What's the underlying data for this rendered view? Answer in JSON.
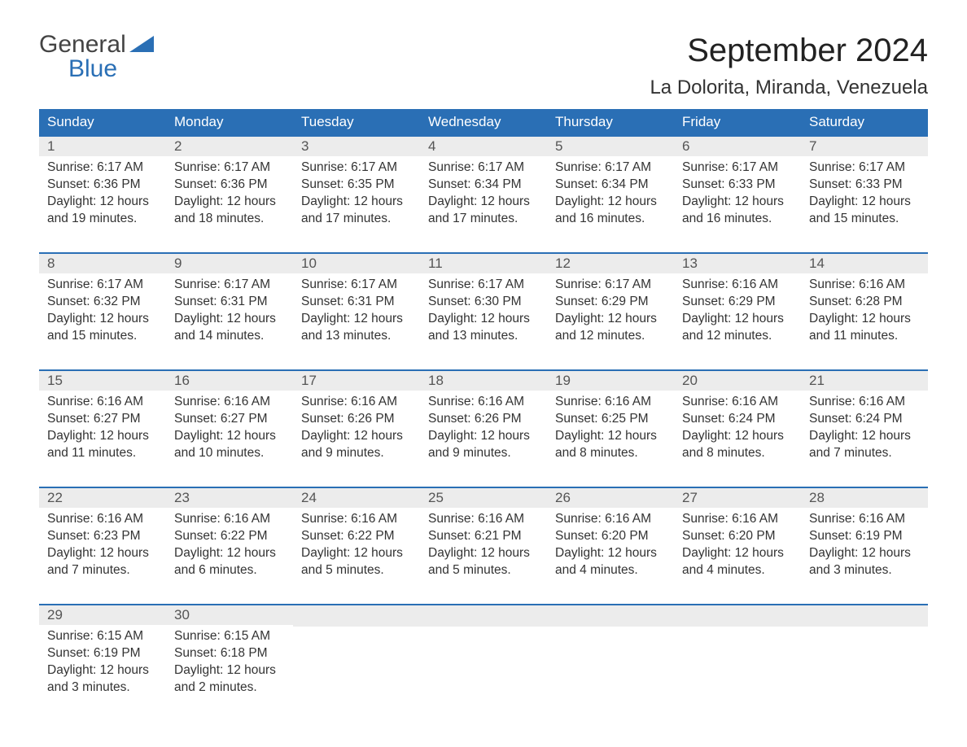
{
  "brand": {
    "word1": "General",
    "word2": "Blue",
    "accent_color": "#2a6fb5",
    "text_color": "#444444"
  },
  "title": "September 2024",
  "location": "La Dolorita, Miranda, Venezuela",
  "colors": {
    "header_bg": "#2a6fb5",
    "header_text": "#ffffff",
    "daynum_bg": "#ececec",
    "row_top_border": "#2a6fb5",
    "body_text": "#333333",
    "page_bg": "#ffffff"
  },
  "weekdays": [
    "Sunday",
    "Monday",
    "Tuesday",
    "Wednesday",
    "Thursday",
    "Friday",
    "Saturday"
  ],
  "weeks": [
    [
      {
        "day": "1",
        "sunrise": "Sunrise: 6:17 AM",
        "sunset": "Sunset: 6:36 PM",
        "dl1": "Daylight: 12 hours",
        "dl2": "and 19 minutes."
      },
      {
        "day": "2",
        "sunrise": "Sunrise: 6:17 AM",
        "sunset": "Sunset: 6:36 PM",
        "dl1": "Daylight: 12 hours",
        "dl2": "and 18 minutes."
      },
      {
        "day": "3",
        "sunrise": "Sunrise: 6:17 AM",
        "sunset": "Sunset: 6:35 PM",
        "dl1": "Daylight: 12 hours",
        "dl2": "and 17 minutes."
      },
      {
        "day": "4",
        "sunrise": "Sunrise: 6:17 AM",
        "sunset": "Sunset: 6:34 PM",
        "dl1": "Daylight: 12 hours",
        "dl2": "and 17 minutes."
      },
      {
        "day": "5",
        "sunrise": "Sunrise: 6:17 AM",
        "sunset": "Sunset: 6:34 PM",
        "dl1": "Daylight: 12 hours",
        "dl2": "and 16 minutes."
      },
      {
        "day": "6",
        "sunrise": "Sunrise: 6:17 AM",
        "sunset": "Sunset: 6:33 PM",
        "dl1": "Daylight: 12 hours",
        "dl2": "and 16 minutes."
      },
      {
        "day": "7",
        "sunrise": "Sunrise: 6:17 AM",
        "sunset": "Sunset: 6:33 PM",
        "dl1": "Daylight: 12 hours",
        "dl2": "and 15 minutes."
      }
    ],
    [
      {
        "day": "8",
        "sunrise": "Sunrise: 6:17 AM",
        "sunset": "Sunset: 6:32 PM",
        "dl1": "Daylight: 12 hours",
        "dl2": "and 15 minutes."
      },
      {
        "day": "9",
        "sunrise": "Sunrise: 6:17 AM",
        "sunset": "Sunset: 6:31 PM",
        "dl1": "Daylight: 12 hours",
        "dl2": "and 14 minutes."
      },
      {
        "day": "10",
        "sunrise": "Sunrise: 6:17 AM",
        "sunset": "Sunset: 6:31 PM",
        "dl1": "Daylight: 12 hours",
        "dl2": "and 13 minutes."
      },
      {
        "day": "11",
        "sunrise": "Sunrise: 6:17 AM",
        "sunset": "Sunset: 6:30 PM",
        "dl1": "Daylight: 12 hours",
        "dl2": "and 13 minutes."
      },
      {
        "day": "12",
        "sunrise": "Sunrise: 6:17 AM",
        "sunset": "Sunset: 6:29 PM",
        "dl1": "Daylight: 12 hours",
        "dl2": "and 12 minutes."
      },
      {
        "day": "13",
        "sunrise": "Sunrise: 6:16 AM",
        "sunset": "Sunset: 6:29 PM",
        "dl1": "Daylight: 12 hours",
        "dl2": "and 12 minutes."
      },
      {
        "day": "14",
        "sunrise": "Sunrise: 6:16 AM",
        "sunset": "Sunset: 6:28 PM",
        "dl1": "Daylight: 12 hours",
        "dl2": "and 11 minutes."
      }
    ],
    [
      {
        "day": "15",
        "sunrise": "Sunrise: 6:16 AM",
        "sunset": "Sunset: 6:27 PM",
        "dl1": "Daylight: 12 hours",
        "dl2": "and 11 minutes."
      },
      {
        "day": "16",
        "sunrise": "Sunrise: 6:16 AM",
        "sunset": "Sunset: 6:27 PM",
        "dl1": "Daylight: 12 hours",
        "dl2": "and 10 minutes."
      },
      {
        "day": "17",
        "sunrise": "Sunrise: 6:16 AM",
        "sunset": "Sunset: 6:26 PM",
        "dl1": "Daylight: 12 hours",
        "dl2": "and 9 minutes."
      },
      {
        "day": "18",
        "sunrise": "Sunrise: 6:16 AM",
        "sunset": "Sunset: 6:26 PM",
        "dl1": "Daylight: 12 hours",
        "dl2": "and 9 minutes."
      },
      {
        "day": "19",
        "sunrise": "Sunrise: 6:16 AM",
        "sunset": "Sunset: 6:25 PM",
        "dl1": "Daylight: 12 hours",
        "dl2": "and 8 minutes."
      },
      {
        "day": "20",
        "sunrise": "Sunrise: 6:16 AM",
        "sunset": "Sunset: 6:24 PM",
        "dl1": "Daylight: 12 hours",
        "dl2": "and 8 minutes."
      },
      {
        "day": "21",
        "sunrise": "Sunrise: 6:16 AM",
        "sunset": "Sunset: 6:24 PM",
        "dl1": "Daylight: 12 hours",
        "dl2": "and 7 minutes."
      }
    ],
    [
      {
        "day": "22",
        "sunrise": "Sunrise: 6:16 AM",
        "sunset": "Sunset: 6:23 PM",
        "dl1": "Daylight: 12 hours",
        "dl2": "and 7 minutes."
      },
      {
        "day": "23",
        "sunrise": "Sunrise: 6:16 AM",
        "sunset": "Sunset: 6:22 PM",
        "dl1": "Daylight: 12 hours",
        "dl2": "and 6 minutes."
      },
      {
        "day": "24",
        "sunrise": "Sunrise: 6:16 AM",
        "sunset": "Sunset: 6:22 PM",
        "dl1": "Daylight: 12 hours",
        "dl2": "and 5 minutes."
      },
      {
        "day": "25",
        "sunrise": "Sunrise: 6:16 AM",
        "sunset": "Sunset: 6:21 PM",
        "dl1": "Daylight: 12 hours",
        "dl2": "and 5 minutes."
      },
      {
        "day": "26",
        "sunrise": "Sunrise: 6:16 AM",
        "sunset": "Sunset: 6:20 PM",
        "dl1": "Daylight: 12 hours",
        "dl2": "and 4 minutes."
      },
      {
        "day": "27",
        "sunrise": "Sunrise: 6:16 AM",
        "sunset": "Sunset: 6:20 PM",
        "dl1": "Daylight: 12 hours",
        "dl2": "and 4 minutes."
      },
      {
        "day": "28",
        "sunrise": "Sunrise: 6:16 AM",
        "sunset": "Sunset: 6:19 PM",
        "dl1": "Daylight: 12 hours",
        "dl2": "and 3 minutes."
      }
    ],
    [
      {
        "day": "29",
        "sunrise": "Sunrise: 6:15 AM",
        "sunset": "Sunset: 6:19 PM",
        "dl1": "Daylight: 12 hours",
        "dl2": "and 3 minutes."
      },
      {
        "day": "30",
        "sunrise": "Sunrise: 6:15 AM",
        "sunset": "Sunset: 6:18 PM",
        "dl1": "Daylight: 12 hours",
        "dl2": "and 2 minutes."
      },
      {
        "day": "",
        "sunrise": "",
        "sunset": "",
        "dl1": "",
        "dl2": ""
      },
      {
        "day": "",
        "sunrise": "",
        "sunset": "",
        "dl1": "",
        "dl2": ""
      },
      {
        "day": "",
        "sunrise": "",
        "sunset": "",
        "dl1": "",
        "dl2": ""
      },
      {
        "day": "",
        "sunrise": "",
        "sunset": "",
        "dl1": "",
        "dl2": ""
      },
      {
        "day": "",
        "sunrise": "",
        "sunset": "",
        "dl1": "",
        "dl2": ""
      }
    ]
  ]
}
